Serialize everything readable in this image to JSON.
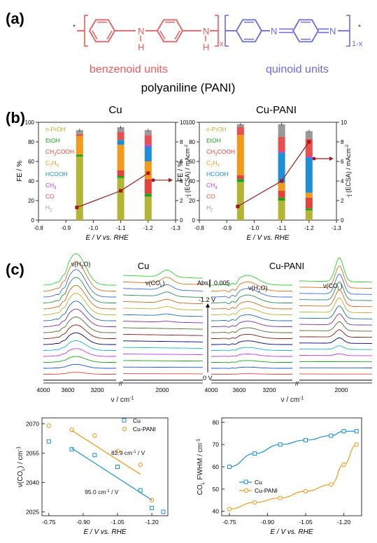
{
  "panel_a": {
    "label": "(a)",
    "benzenoid_label": "benzenoid units",
    "quinoid_label": "quinoid units",
    "title": "polyaniline (PANI)",
    "subscript_x": "x",
    "subscript_1x": "1-x",
    "atom_N": "N",
    "atom_H": "H",
    "star": "*",
    "colors": {
      "benzenoid": "#f05a5a",
      "quinoid": "#6a6ae6"
    }
  },
  "panel_b": {
    "label": "(b)",
    "legend": [
      {
        "label": "n-PrOH",
        "color": "#b5b535"
      },
      {
        "label": "EtOH",
        "color": "#19a519"
      },
      {
        "label": "CH3COOH",
        "color": "#e0443a"
      },
      {
        "label": "C2H4",
        "color": "#f29a1c"
      },
      {
        "label": "HCOOH",
        "color": "#1e8fd6"
      },
      {
        "label": "CH4",
        "color": "#c23ee6"
      },
      {
        "label": "CO",
        "color": "#e85050"
      },
      {
        "label": "H2",
        "color": "#999999"
      }
    ],
    "ylabel_left": "FE / %",
    "ylabel_right": "-j (ECSA) / mAcm-2",
    "xlabel": "E / V vs. RHE",
    "x_ticks": [
      "-0.8",
      "-0.9",
      "-1.0",
      "-1.1",
      "-1.2",
      "-1.3"
    ],
    "y_ticks_left": [
      "0",
      "20",
      "40",
      "60",
      "80",
      "100"
    ],
    "y_ticks_right": [
      "0",
      "2",
      "4",
      "6",
      "8",
      "10"
    ]
  },
  "panel_c": {
    "label": "(c)",
    "cu_title": "Cu",
    "cupani_title": "Cu-PANI",
    "abs_label": "Abs.",
    "abs_value": "0.005",
    "h2o_label": "ν(H2O)",
    "col_label": "ν(COL)",
    "v_top": "-1.2 V",
    "v_bottom": "0 V",
    "x_ticks_left": [
      "4000",
      "3600",
      "3200",
      "2000"
    ],
    "x_ticks_right": [
      "4000",
      "3600",
      "3200",
      "2000"
    ],
    "xlabel": "ν / cm-1",
    "spectrum_colors": [
      "#000000",
      "#e0443a",
      "#1e4fd6",
      "#19a519",
      "#c23ee6",
      "#19b5c8",
      "#000080",
      "#8b1a1a",
      "#556b2f",
      "#7b2fa0",
      "#1e6fb0",
      "#b5b535",
      "#d2691e",
      "#2e8b57",
      "#4169e1",
      "#e07020",
      "#32cd32"
    ]
  },
  "chart_data": [
    {
      "type": "bar",
      "title": "Cu",
      "x": [
        -0.95,
        -1.1,
        -1.2
      ],
      "xlim": [
        -0.8,
        -1.3
      ],
      "ylim": [
        0,
        100
      ],
      "xlabel": "E / V vs. RHE",
      "ylabel": "FE / %",
      "series": [
        {
          "name": "H2",
          "values": [
            65,
            43,
            24
          ]
        },
        {
          "name": "CO",
          "values": [
            2,
            2,
            3
          ]
        },
        {
          "name": "CH4",
          "values": [
            0,
            6,
            15
          ]
        },
        {
          "name": "HCOOH",
          "values": [
            19,
            26,
            18
          ]
        },
        {
          "name": "C2H4",
          "values": [
            0,
            5,
            15
          ]
        },
        {
          "name": "CH3COOH",
          "values": [
            0,
            0,
            2
          ]
        },
        {
          "name": "EtOH",
          "values": [
            2,
            8,
            10
          ]
        },
        {
          "name": "n-PrOH",
          "values": [
            4,
            5,
            5
          ]
        }
      ],
      "current_density": {
        "x": [
          -0.94,
          -1.1,
          -1.2
        ],
        "y": [
          1.3,
          3.0,
          4.8
        ],
        "ylim": [
          0,
          10
        ]
      }
    },
    {
      "type": "bar",
      "title": "Cu-PANI",
      "x": [
        -0.95,
        -1.1,
        -1.2
      ],
      "xlim": [
        -0.8,
        -1.3
      ],
      "ylim": [
        0,
        100
      ],
      "xlabel": "E / V vs. RHE",
      "ylabel": "FE / %",
      "series": [
        {
          "name": "H2",
          "values": [
            39,
            20,
            10
          ]
        },
        {
          "name": "CO",
          "values": [
            3,
            3,
            2
          ]
        },
        {
          "name": "CH4",
          "values": [
            4,
            7,
            11
          ]
        },
        {
          "name": "HCOOH",
          "values": [
            41,
            8,
            5
          ]
        },
        {
          "name": "C2H4",
          "values": [
            0,
            31,
            36
          ]
        },
        {
          "name": "CH3COOH",
          "values": [
            0,
            1,
            1
          ]
        },
        {
          "name": "EtOH",
          "values": [
            8,
            15,
            18
          ]
        },
        {
          "name": "n-PrOH",
          "values": [
            3,
            13,
            8
          ]
        }
      ],
      "current_density": {
        "x": [
          -0.94,
          -1.1,
          -1.2
        ],
        "y": [
          1.4,
          4.0,
          8.0
        ],
        "ylim": [
          0,
          10
        ]
      }
    },
    {
      "type": "scatter",
      "xlabel": "E / V vs. RHE",
      "ylabel": "ν(COL) / cm-1",
      "x_ticks": [
        "-0.75",
        "-0.90",
        "-1.05",
        "-1.20"
      ],
      "y_ticks": [
        "2025",
        "2040",
        "2055",
        "2070"
      ],
      "xlim": [
        -0.72,
        -1.27
      ],
      "ylim": [
        2023,
        2073
      ],
      "series": [
        {
          "name": "Cu",
          "color": "#1e8fd6",
          "x": [
            -0.75,
            -0.85,
            -0.95,
            -1.05,
            -1.15,
            -1.2,
            -1.25
          ],
          "y": [
            2061,
            2057,
            2054,
            2048,
            2036,
            2027,
            2025
          ]
        },
        {
          "name": "Cu-PANI",
          "color": "#f29a1c",
          "x": [
            -0.75,
            -0.85,
            -0.95,
            -1.05,
            -1.15,
            -1.2
          ],
          "y": [
            2069,
            2067,
            2064,
            2056,
            2049,
            2031
          ]
        }
      ],
      "annotations": [
        "82.9 cm-1 / V",
        "95.0 cm-1 / V"
      ],
      "legend": [
        "Cu",
        "Cu-PANI"
      ]
    },
    {
      "type": "line",
      "xlabel": "E / V vs. RHE",
      "ylabel": "COL FWHM / cm-1",
      "x_ticks": [
        "-0.75",
        "-0.90",
        "-1.05",
        "-1.20"
      ],
      "y_ticks": [
        "40",
        "50",
        "60",
        "70",
        "80"
      ],
      "xlim": [
        -0.72,
        -1.27
      ],
      "ylim": [
        38,
        82
      ],
      "series": [
        {
          "name": "Cu",
          "color": "#1e8fd6",
          "x": [
            -0.75,
            -0.85,
            -0.95,
            -1.05,
            -1.15,
            -1.2,
            -1.25
          ],
          "y": [
            60,
            66,
            70,
            72,
            74,
            76,
            76
          ]
        },
        {
          "name": "Cu-PANI",
          "color": "#f29a1c",
          "x": [
            -0.75,
            -0.85,
            -0.95,
            -1.05,
            -1.15,
            -1.2,
            -1.25
          ],
          "y": [
            41,
            44,
            46,
            49,
            52,
            61,
            70
          ]
        }
      ],
      "legend": [
        "Cu",
        "Cu-PANI"
      ]
    }
  ]
}
